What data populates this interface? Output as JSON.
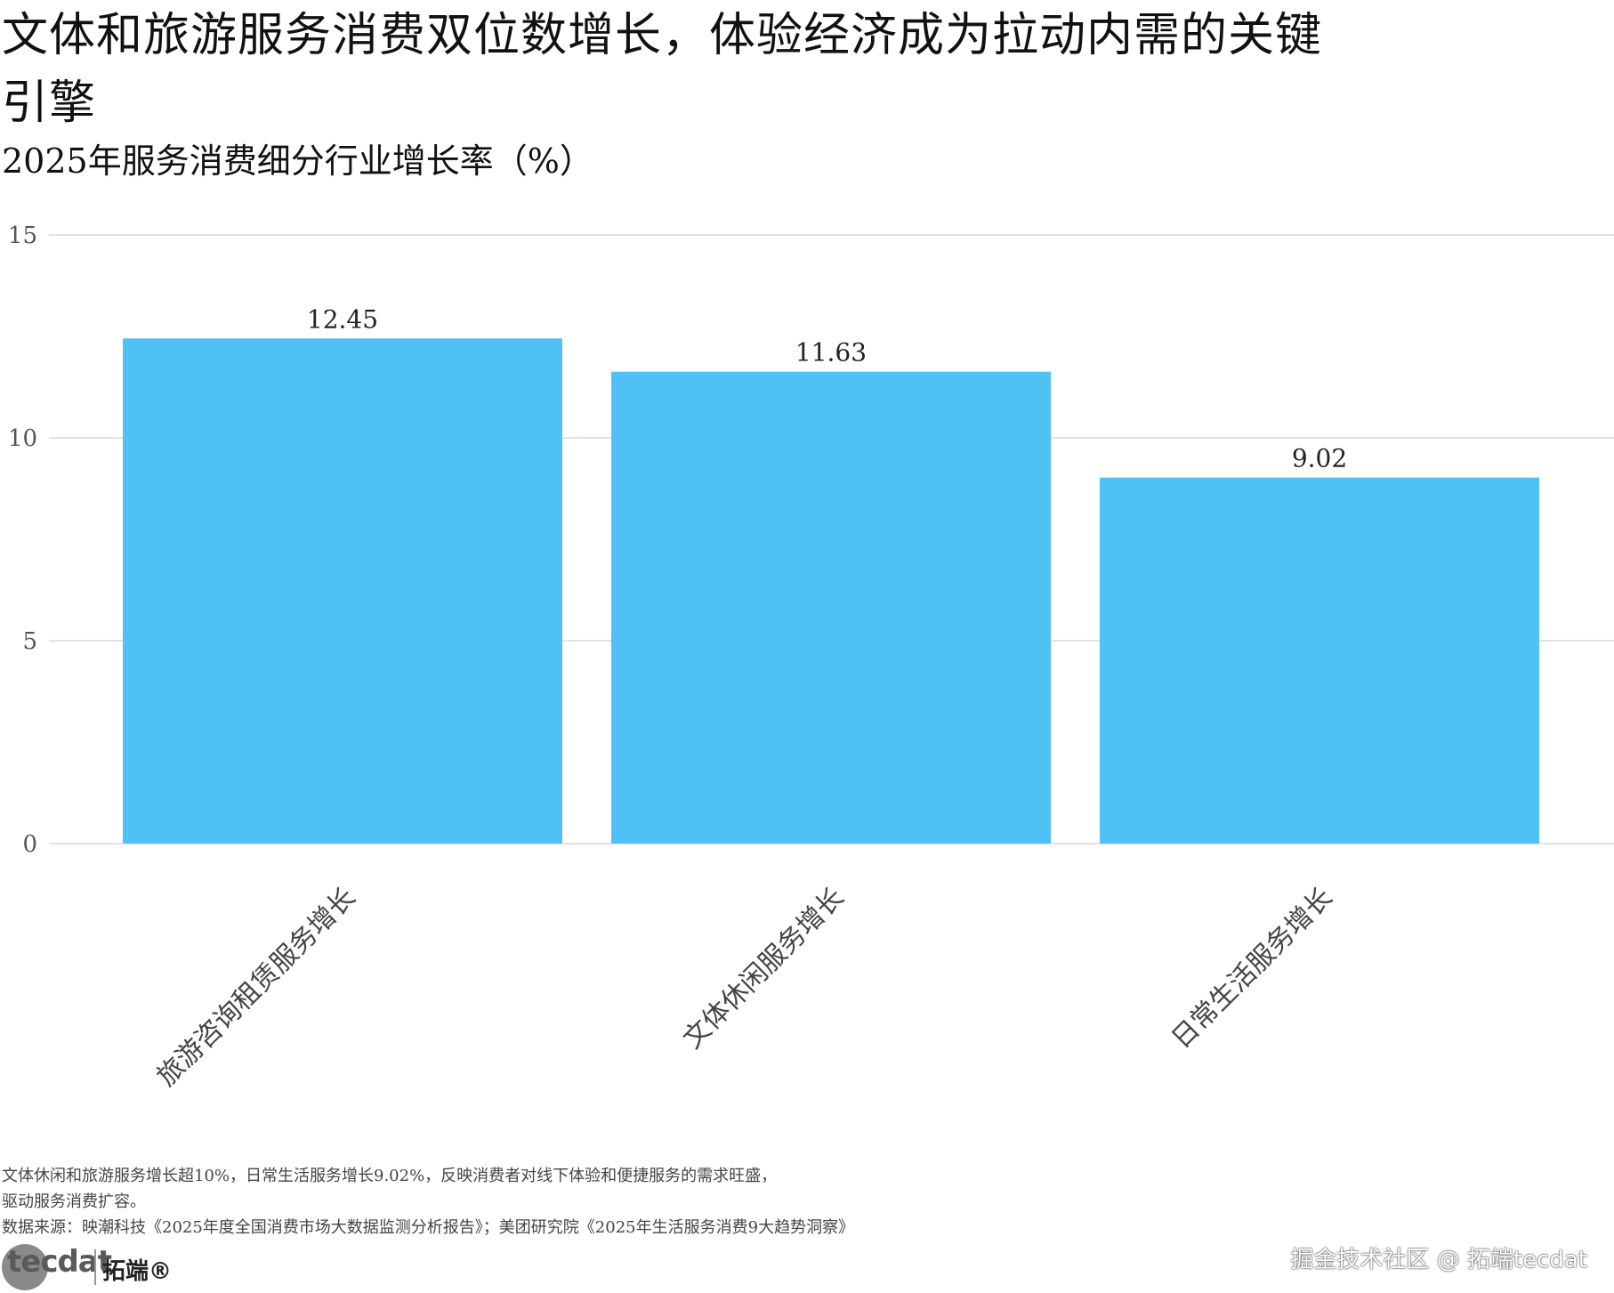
{
  "title": "文体和旅游服务消费双位数增长，体验经济成为拉动内需的关键引擎",
  "subtitle": "2025年服务消费细分行业增长率（%）",
  "chart_data": {
    "type": "bar",
    "categories": [
      "旅游咨询租赁服务增长",
      "文体休闲服务增长",
      "日常生活服务增长"
    ],
    "values": [
      12.45,
      11.63,
      9.02
    ],
    "value_labels": [
      "12.45",
      "11.63",
      "9.02"
    ],
    "ylim": [
      0,
      15
    ],
    "yticks": [
      0,
      5,
      10,
      15
    ],
    "grid": true,
    "bar_color": "#4fc1f4",
    "xlabel": "",
    "ylabel": ""
  },
  "notes": {
    "line1": "文体休闲和旅游服务增长超10%，日常生活服务增长9.02%，反映消费者对线下体验和便捷服务的需求旺盛，",
    "line2": "驱动服务消费扩容。",
    "source": "数据来源：映潮科技《2025年度全国消费市场大数据监测分析报告》；美团研究院《2025年生活服务消费9大趋势洞察》"
  },
  "branding": {
    "logo_text": "tecdat",
    "logo_cn": "拓端®",
    "watermark": "掘金技术社区 @ 拓端tecdat"
  }
}
